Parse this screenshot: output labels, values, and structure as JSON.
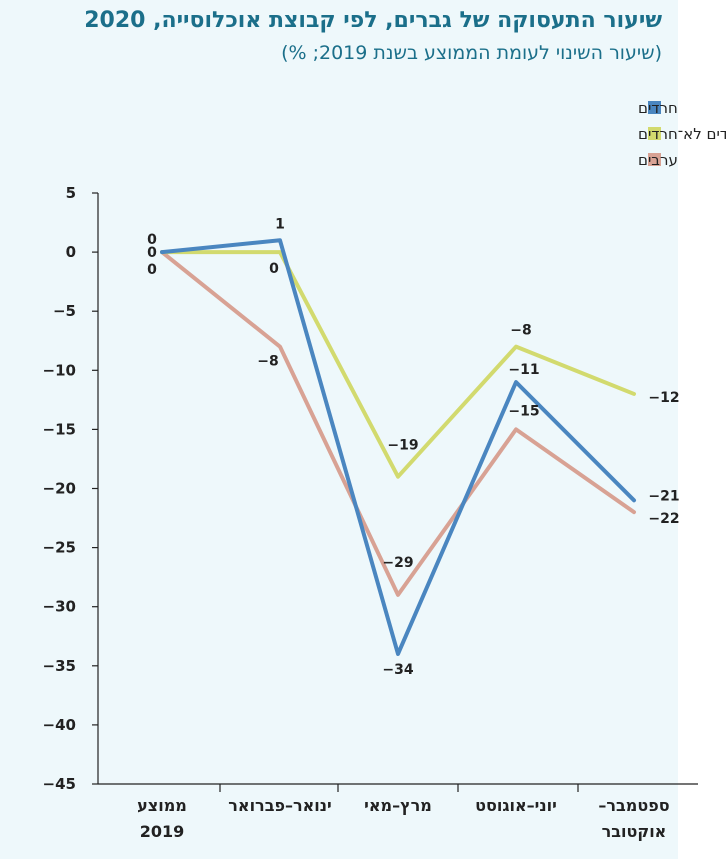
{
  "chart_data": {
    "type": "line",
    "title": "שיעור התעסוקה של גברים, לפי קבוצת אוכלוסייה, 2020",
    "subtitle": "(שיעור השינוי לעומת הממוצע בשנת 2019; %)",
    "categories": [
      [
        "ממוצע",
        "2019"
      ],
      [
        "ינואר–פברואר"
      ],
      [
        "מרץ–מאי"
      ],
      [
        "יוני–אוגוסט"
      ],
      [
        "ספטמבר–",
        "אוקטובר"
      ]
    ],
    "ylim": [
      -45,
      5
    ],
    "yticks": [
      "5",
      "0",
      "−5",
      "−10",
      "−15",
      "−20",
      "−25",
      "−30",
      "−35",
      "−40",
      "−45"
    ],
    "legend_position": "top-right",
    "series": [
      {
        "name": "חרדים",
        "color": "#4a86c0",
        "values": [
          0,
          1,
          -34,
          -11,
          -21
        ],
        "labels": [
          "0",
          "1",
          "−34",
          "−11",
          "−21"
        ]
      },
      {
        "name": "יהודים לא־חרדים",
        "color": "#d2da6e",
        "values": [
          0,
          0,
          -19,
          -8,
          -12
        ],
        "labels": [
          "0",
          "0",
          "−19",
          "−8",
          "−12"
        ]
      },
      {
        "name": "ערבים",
        "color": "#d8a294",
        "values": [
          0,
          -8,
          -29,
          -15,
          -22
        ],
        "labels": [
          "0",
          "−8",
          "−29",
          "−15",
          "−22"
        ]
      }
    ]
  }
}
